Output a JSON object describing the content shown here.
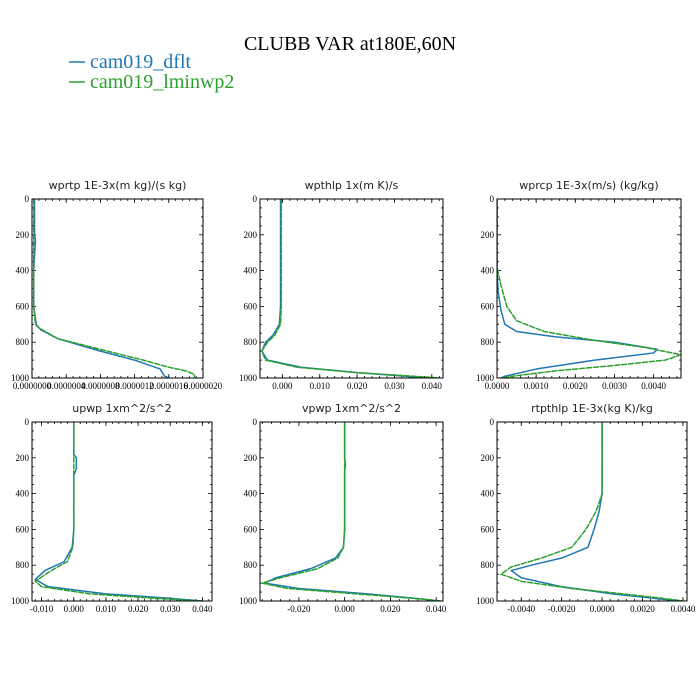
{
  "figure": {
    "title": "CLUBB VAR at180E,60N",
    "legend": [
      {
        "label": "cam019_dflt",
        "color": "#1f77b4",
        "dash": "solid"
      },
      {
        "label": "cam019_lminwp2",
        "color": "#2ca02c",
        "dash": "dashed"
      }
    ]
  },
  "chart_data": [
    {
      "type": "line",
      "id": "wprtp",
      "title": "wprtp  1E-3x(m kg)/(s kg)",
      "xlim": [
        0,
        2e-06
      ],
      "ylim": [
        1000,
        0
      ],
      "xticks": [
        0,
        4e-07,
        8e-07,
        1.2e-06,
        1.6e-06,
        2e-06
      ],
      "xtick_labels": [
        "0.0000000",
        "0.0000004",
        "0.0000008",
        "0.0000012",
        "0.0000016",
        "0.0000020"
      ],
      "yticks": [
        0,
        200,
        400,
        600,
        800,
        1000
      ],
      "ytick_labels": [
        "0",
        "200",
        "400",
        "600",
        "800",
        "1000"
      ],
      "series": [
        {
          "name": "cam019_dflt",
          "points": [
            [
              3e-08,
              0
            ],
            [
              3e-08,
              200
            ],
            [
              4e-08,
              230
            ],
            [
              2e-08,
              400
            ],
            [
              2e-08,
              600
            ],
            [
              5e-08,
              700
            ],
            [
              1e-07,
              730
            ],
            [
              3e-07,
              780
            ],
            [
              8e-07,
              850
            ],
            [
              1.2e-06,
              900
            ],
            [
              1.5e-06,
              950
            ],
            [
              1.55e-06,
              990
            ],
            [
              1.6e-06,
              1000
            ]
          ]
        },
        {
          "name": "cam019_lminwp2",
          "points": [
            [
              2e-08,
              0
            ],
            [
              2e-08,
              200
            ],
            [
              2e-08,
              400
            ],
            [
              2e-08,
              600
            ],
            [
              4e-08,
              700
            ],
            [
              8e-08,
              720
            ],
            [
              3e-07,
              780
            ],
            [
              8e-07,
              840
            ],
            [
              1.3e-06,
              900
            ],
            [
              1.6e-06,
              940
            ],
            [
              1.8e-06,
              960
            ],
            [
              1.9e-06,
              980
            ],
            [
              1.9e-06,
              1000
            ]
          ]
        }
      ]
    },
    {
      "type": "line",
      "id": "wpthlp",
      "title": "wpthlp  1x(m K)/s",
      "xlim": [
        -0.006,
        0.043
      ],
      "ylim": [
        1000,
        0
      ],
      "xticks": [
        0,
        0.01,
        0.02,
        0.03,
        0.04
      ],
      "xtick_labels": [
        "0.000",
        "0.010",
        "0.020",
        "0.030",
        "0.040"
      ],
      "yticks": [
        0,
        200,
        400,
        600,
        800,
        1000
      ],
      "ytick_labels": [
        "0",
        "200",
        "400",
        "600",
        "800",
        "1000"
      ],
      "series": [
        {
          "name": "cam019_dflt",
          "points": [
            [
              -0.0005,
              0
            ],
            [
              -0.0005,
              200
            ],
            [
              -0.0005,
              400
            ],
            [
              -0.0005,
              600
            ],
            [
              -0.0008,
              700
            ],
            [
              -0.0025,
              760
            ],
            [
              -0.0045,
              800
            ],
            [
              -0.0055,
              850
            ],
            [
              -0.004,
              900
            ],
            [
              0.005,
              940
            ],
            [
              0.02,
              970
            ],
            [
              0.033,
              990
            ],
            [
              0.038,
              1000
            ]
          ]
        },
        {
          "name": "cam019_lminwp2",
          "points": [
            [
              -0.0003,
              0
            ],
            [
              -0.0003,
              200
            ],
            [
              -0.0003,
              400
            ],
            [
              -0.0003,
              600
            ],
            [
              -0.0005,
              700
            ],
            [
              -0.002,
              760
            ],
            [
              -0.004,
              800
            ],
            [
              -0.0055,
              850
            ],
            [
              -0.0045,
              900
            ],
            [
              0.004,
              940
            ],
            [
              0.02,
              970
            ],
            [
              0.035,
              990
            ],
            [
              0.042,
              1000
            ]
          ]
        }
      ]
    },
    {
      "type": "line",
      "id": "wprcp",
      "title": "wprcp  1E-3x(m/s) (kg/kg)",
      "xlim": [
        0,
        0.0047
      ],
      "ylim": [
        1000,
        0
      ],
      "xticks": [
        0,
        0.001,
        0.002,
        0.003,
        0.004
      ],
      "xtick_labels": [
        "0.0000",
        "0.0010",
        "0.0020",
        "0.0030",
        "0.0040"
      ],
      "yticks": [
        0,
        200,
        400,
        600,
        800,
        1000
      ],
      "ytick_labels": [
        "0",
        "200",
        "400",
        "600",
        "800",
        "1000"
      ],
      "series": [
        {
          "name": "cam019_dflt",
          "points": [
            [
              0,
              0
            ],
            [
              0,
              400
            ],
            [
              3e-05,
              520
            ],
            [
              0.0001,
              620
            ],
            [
              0.0002,
              700
            ],
            [
              0.0005,
              740
            ],
            [
              0.0015,
              770
            ],
            [
              0.003,
              800
            ],
            [
              0.0041,
              840
            ],
            [
              0.004,
              860
            ],
            [
              0.0025,
              900
            ],
            [
              0.001,
              950
            ],
            [
              0.0002,
              990
            ],
            [
              0.0001,
              1000
            ]
          ]
        },
        {
          "name": "cam019_lminwp2",
          "points": [
            [
              0,
              0
            ],
            [
              0,
              380
            ],
            [
              0.0001,
              480
            ],
            [
              0.00025,
              600
            ],
            [
              0.0005,
              680
            ],
            [
              0.0012,
              740
            ],
            [
              0.0025,
              790
            ],
            [
              0.0038,
              830
            ],
            [
              0.0047,
              870
            ],
            [
              0.0043,
              900
            ],
            [
              0.003,
              930
            ],
            [
              0.0015,
              960
            ],
            [
              0.0004,
              990
            ],
            [
              0.0001,
              1000
            ]
          ]
        }
      ]
    },
    {
      "type": "line",
      "id": "upwp",
      "title": "upwp  1xm^2/s^2",
      "xlim": [
        -0.013,
        0.043
      ],
      "ylim": [
        1000,
        0
      ],
      "xticks": [
        -0.01,
        0,
        0.01,
        0.02,
        0.03,
        0.04
      ],
      "xtick_labels": [
        "-0.010",
        "0.000",
        "0.010",
        "0.020",
        "0.030",
        "0.040"
      ],
      "yticks": [
        0,
        200,
        400,
        600,
        800,
        1000
      ],
      "ytick_labels": [
        "0",
        "200",
        "400",
        "600",
        "800",
        "1000"
      ],
      "series": [
        {
          "name": "cam019_dflt",
          "points": [
            [
              0,
              0
            ],
            [
              0,
              180
            ],
            [
              0.0008,
              200
            ],
            [
              0.0008,
              260
            ],
            [
              0,
              300
            ],
            [
              0,
              320
            ],
            [
              0,
              400
            ],
            [
              0,
              600
            ],
            [
              -0.0005,
              700
            ],
            [
              -0.003,
              780
            ],
            [
              -0.009,
              830
            ],
            [
              -0.012,
              880
            ],
            [
              -0.008,
              920
            ],
            [
              0.01,
              960
            ],
            [
              0.03,
              985
            ],
            [
              0.04,
              1000
            ]
          ]
        },
        {
          "name": "cam019_lminwp2",
          "points": [
            [
              0,
              0
            ],
            [
              0,
              320
            ],
            [
              0,
              400
            ],
            [
              0,
              600
            ],
            [
              -0.0003,
              700
            ],
            [
              -0.002,
              780
            ],
            [
              -0.007,
              830
            ],
            [
              -0.012,
              890
            ],
            [
              -0.01,
              920
            ],
            [
              0.005,
              960
            ],
            [
              0.025,
              985
            ],
            [
              0.04,
              1000
            ]
          ]
        }
      ]
    },
    {
      "type": "line",
      "id": "vpwp",
      "title": "vpwp  1xm^2/s^2",
      "xlim": [
        -0.037,
        0.043
      ],
      "ylim": [
        1000,
        0
      ],
      "xticks": [
        -0.02,
        0,
        0.02,
        0.04
      ],
      "xtick_labels": [
        "-0.020",
        "0.000",
        "0.020",
        "0.040"
      ],
      "yticks": [
        0,
        200,
        400,
        600,
        800,
        1000
      ],
      "ytick_labels": [
        "0",
        "200",
        "400",
        "600",
        "800",
        "1000"
      ],
      "series": [
        {
          "name": "cam019_dflt",
          "points": [
            [
              0,
              0
            ],
            [
              0,
              200
            ],
            [
              0.0003,
              240
            ],
            [
              0,
              280
            ],
            [
              0,
              400
            ],
            [
              0,
              600
            ],
            [
              -0.0005,
              700
            ],
            [
              -0.004,
              760
            ],
            [
              -0.015,
              820
            ],
            [
              -0.03,
              870
            ],
            [
              -0.035,
              900
            ],
            [
              -0.02,
              930
            ],
            [
              0.01,
              960
            ],
            [
              0.035,
              990
            ],
            [
              0.04,
              1000
            ]
          ]
        },
        {
          "name": "cam019_lminwp2",
          "points": [
            [
              0,
              0
            ],
            [
              0,
              400
            ],
            [
              0,
              600
            ],
            [
              -0.0005,
              700
            ],
            [
              -0.003,
              760
            ],
            [
              -0.012,
              820
            ],
            [
              -0.028,
              870
            ],
            [
              -0.036,
              900
            ],
            [
              -0.025,
              930
            ],
            [
              0.005,
              960
            ],
            [
              0.035,
              990
            ],
            [
              0.042,
              1000
            ]
          ]
        }
      ]
    },
    {
      "type": "line",
      "id": "rtpthlp",
      "title": "rtpthlp  1E-3x(kg K)/kg",
      "xlim": [
        -0.0052,
        0.0042
      ],
      "ylim": [
        1000,
        0
      ],
      "xticks": [
        -0.004,
        -0.002,
        0,
        0.002,
        0.004
      ],
      "xtick_labels": [
        "-0.0040",
        "-0.0020",
        "0.0000",
        "0.0020",
        "0.0040"
      ],
      "yticks": [
        0,
        200,
        400,
        600,
        800,
        1000
      ],
      "ytick_labels": [
        "0",
        "200",
        "400",
        "600",
        "800",
        "1000"
      ],
      "series": [
        {
          "name": "cam019_dflt",
          "points": [
            [
              0,
              0
            ],
            [
              0,
              400
            ],
            [
              -0.00015,
              500
            ],
            [
              -0.0004,
              600
            ],
            [
              -0.0007,
              700
            ],
            [
              -0.002,
              760
            ],
            [
              -0.0035,
              800
            ],
            [
              -0.0045,
              830
            ],
            [
              -0.004,
              870
            ],
            [
              -0.002,
              920
            ],
            [
              0.0005,
              960
            ],
            [
              0.003,
              990
            ],
            [
              0.004,
              1000
            ]
          ]
        },
        {
          "name": "cam019_lminwp2",
          "points": [
            [
              0,
              0
            ],
            [
              0,
              400
            ],
            [
              -0.0003,
              500
            ],
            [
              -0.0008,
              600
            ],
            [
              -0.0015,
              700
            ],
            [
              -0.003,
              760
            ],
            [
              -0.0045,
              810
            ],
            [
              -0.005,
              850
            ],
            [
              -0.004,
              890
            ],
            [
              -0.0015,
              930
            ],
            [
              0.001,
              960
            ],
            [
              0.003,
              985
            ],
            [
              0.004,
              1000
            ]
          ]
        }
      ]
    }
  ]
}
